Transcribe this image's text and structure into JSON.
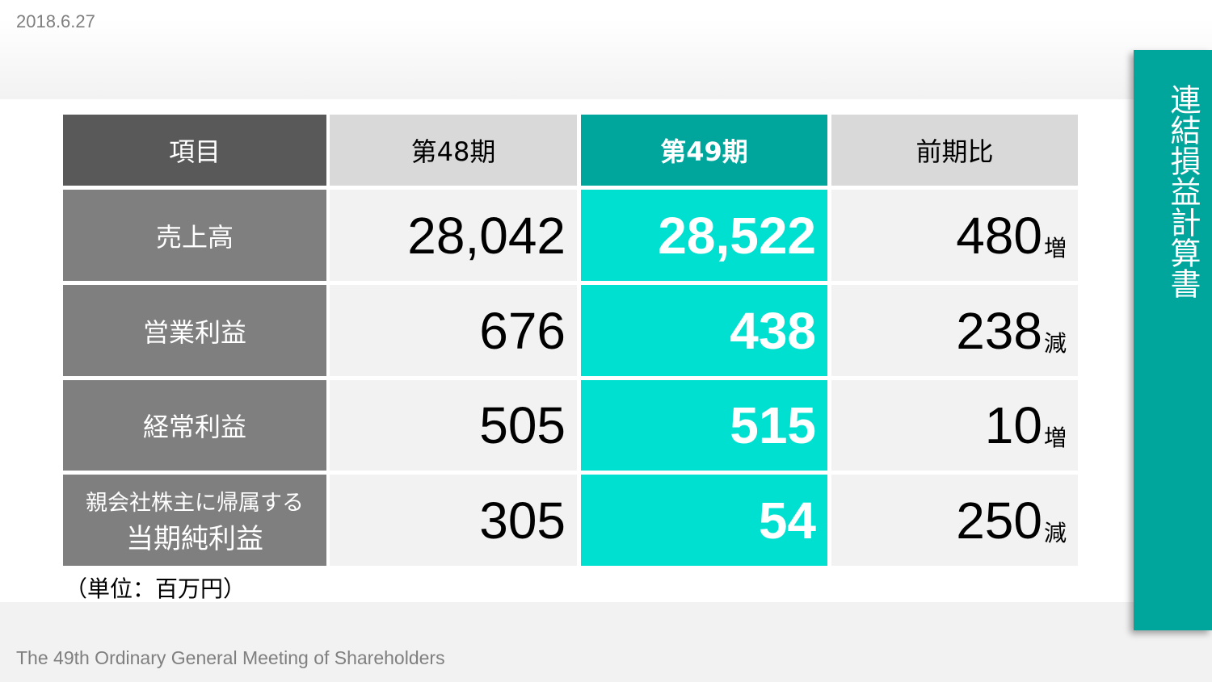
{
  "header": {
    "date": "2018.6.27"
  },
  "footer": {
    "text": "The 49th Ordinary General Meeting of Shareholders"
  },
  "sidebar": {
    "title": "連結損益計算書",
    "color": "#00a69c"
  },
  "table": {
    "headers": [
      "項目",
      "第48期",
      "第49期",
      "前期比"
    ],
    "rows": [
      {
        "label": "売上高",
        "label2": "",
        "p48": "28,042",
        "p49": "28,522",
        "diff": "480",
        "dir": "増"
      },
      {
        "label": "営業利益",
        "label2": "",
        "p48": "676",
        "p49": "438",
        "diff": "238",
        "dir": "減"
      },
      {
        "label": "経常利益",
        "label2": "",
        "p48": "505",
        "p49": "515",
        "diff": "10",
        "dir": "増"
      },
      {
        "label": "親会社株主に帰属する",
        "label2": "当期純利益",
        "p48": "305",
        "p49": "54",
        "diff": "250",
        "dir": "減"
      }
    ],
    "unit": "（単位：百万円）",
    "colors": {
      "header_item": "#595959",
      "header_gray": "#d9d9d9",
      "header_teal": "#00a69c",
      "highlight": "#00e0d0",
      "label_bg": "#7f7f7f",
      "cell_bg": "#f2f2f2"
    }
  }
}
